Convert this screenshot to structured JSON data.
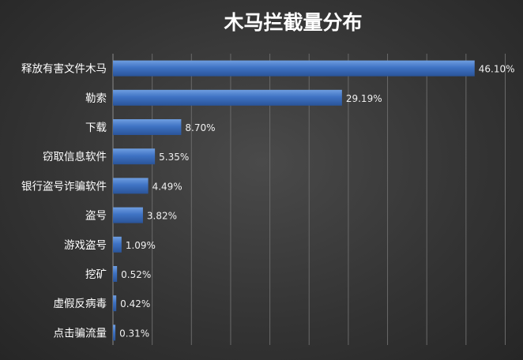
{
  "chart_data": {
    "type": "bar",
    "orientation": "horizontal",
    "title": "木马拦截量分布",
    "categories": [
      "释放有害文件木马",
      "勒索",
      "下载",
      "窃取信息软件",
      "银行盗号诈骗软件",
      "盗号",
      "游戏盗号",
      "挖矿",
      "虚假反病毒",
      "点击骗流量"
    ],
    "values": [
      46.1,
      29.19,
      8.7,
      5.35,
      4.49,
      3.82,
      1.09,
      0.52,
      0.42,
      0.31
    ],
    "value_labels": [
      "46.10%",
      "29.19%",
      "8.70%",
      "5.35%",
      "4.49%",
      "3.82%",
      "1.09%",
      "0.52%",
      "0.42%",
      "0.31%"
    ],
    "xlim": [
      0,
      50
    ],
    "grid": true,
    "bar_color": "#3f73c4"
  }
}
